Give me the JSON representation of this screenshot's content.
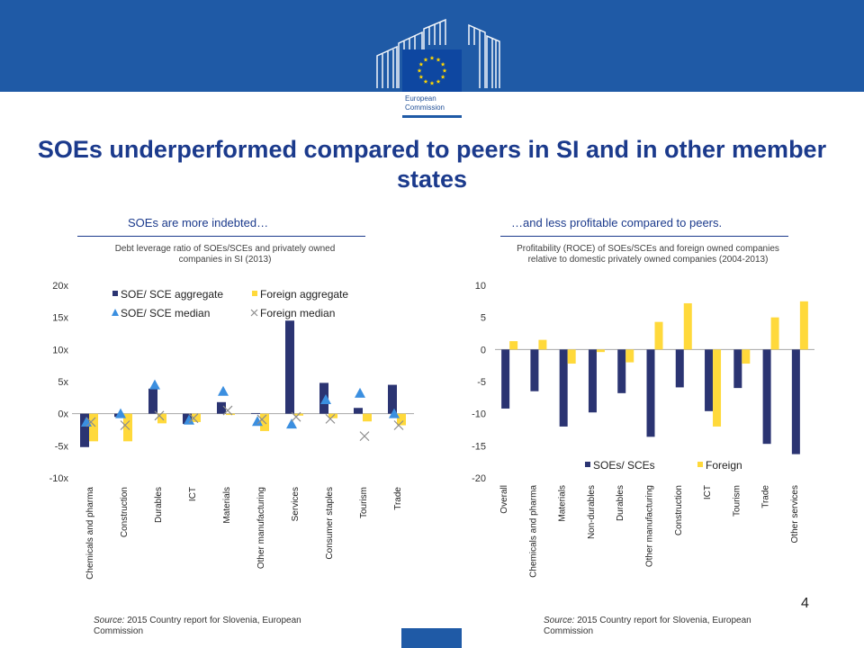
{
  "slide": {
    "title": "SOEs underperformed compared to peers in SI and in other member states",
    "left_subtitle": "SOEs are more indebted…",
    "right_subtitle": "…and less profitable compared to peers.",
    "logo_line1": "European",
    "logo_line2": "Commission",
    "page_number": "4",
    "source_prefix": "Source:",
    "source_left": "2015 Country report for Slovenia, European Commission",
    "source_right": "2015 Country report for Slovenia, European Commission"
  },
  "colors": {
    "banner": "#1f5aa6",
    "navy": "#2b3472",
    "yellow": "#ffd93b",
    "triangle": "#3b8fe0",
    "cross": "#8c8c8c",
    "title": "#1b3a8c"
  },
  "chart_data": [
    {
      "type": "bar",
      "title": "Debt leverage ratio of SOEs/SCEs and privately owned companies in SI (2013)",
      "categories": [
        "Chemicals and pharma",
        "Construction",
        "Durables",
        "ICT",
        "Materials",
        "Other manufacturing",
        "Services",
        "Consumer staples",
        "Tourism",
        "Trade"
      ],
      "series": [
        {
          "name": "SOE/ SCE aggregate",
          "kind": "bar",
          "values": [
            -5.2,
            -0.5,
            3.9,
            -1.6,
            1.8,
            0.1,
            14.5,
            4.8,
            0.9,
            4.5
          ]
        },
        {
          "name": "Foreign aggregate",
          "kind": "bar",
          "values": [
            -4.3,
            -4.3,
            -1.5,
            -1.3,
            -0.2,
            -2.7,
            -0.3,
            -0.7,
            -1.2,
            -1.8
          ]
        },
        {
          "name": "SOE/ SCE median",
          "kind": "triangle",
          "values": [
            -1.3,
            0.0,
            4.5,
            -1.0,
            3.5,
            -1.2,
            -1.6,
            2.2,
            3.2,
            0.0
          ]
        },
        {
          "name": "Foreign median",
          "kind": "cross",
          "values": [
            -1.3,
            -1.8,
            -0.3,
            -0.7,
            0.5,
            -0.9,
            -0.5,
            -0.8,
            -3.5,
            -1.8
          ]
        }
      ],
      "yticks": [
        "20x",
        "15x",
        "10x",
        "5x",
        "0x",
        "-5x",
        "-10x"
      ],
      "ylim": [
        -10,
        20
      ],
      "legend": "top-right"
    },
    {
      "type": "bar",
      "title": "Profitability (ROCE) of SOEs/SCEs and foreign owned companies relative to domestic privately owned companies (2004-2013)",
      "categories": [
        "Overall",
        "Chemicals and pharma",
        "Materials",
        "Non-durables",
        "Durables",
        "Other manufacturing",
        "Construction",
        "ICT",
        "Tourism",
        "Trade",
        "Other services"
      ],
      "series": [
        {
          "name": "SOEs/ SCEs",
          "values": [
            -9.2,
            -6.5,
            -12.0,
            -9.8,
            -6.8,
            -13.6,
            -5.9,
            -9.6,
            -6.0,
            -14.7,
            -16.3
          ]
        },
        {
          "name": "Foreign",
          "values": [
            1.3,
            1.5,
            -2.2,
            -0.4,
            -2.0,
            4.3,
            7.2,
            -12.0,
            -2.2,
            5.0,
            7.5
          ]
        }
      ],
      "yticks": [
        "10",
        "5",
        "0",
        "-5",
        "-10",
        "-15",
        "-20"
      ],
      "ylim": [
        -20,
        10
      ],
      "legend": "bottom-center"
    }
  ]
}
